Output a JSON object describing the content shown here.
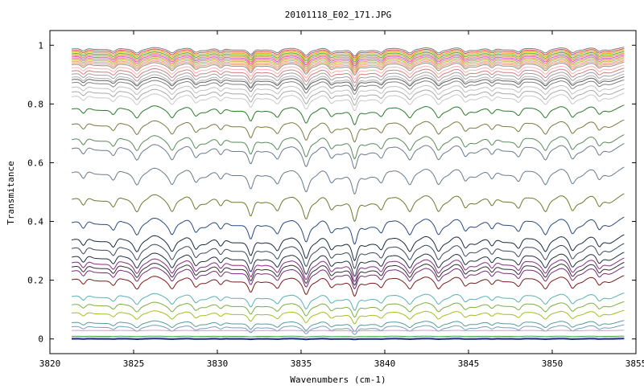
{
  "chart_data": {
    "type": "line",
    "title": "20101118_E02_171.JPG",
    "xlabel": "Wavenumbers (cm-1)",
    "ylabel": "Transmitance",
    "xlim": [
      3820,
      3855
    ],
    "ylim": [
      -0.05,
      1.05
    ],
    "x_ticks": [
      3820,
      3825,
      3830,
      3835,
      3840,
      3845,
      3850,
      3855
    ],
    "y_ticks": [
      0,
      0.2,
      0.4,
      0.6,
      0.8,
      1
    ],
    "x_tick_labels": [
      "3820",
      "3825",
      "3830",
      "3835",
      "3840",
      "3845",
      "3850",
      "3855"
    ],
    "y_tick_labels": [
      "0",
      "0.2",
      "0.4",
      "0.6",
      "0.8",
      "1"
    ],
    "x_range_data": [
      3821.3,
      3854.3
    ],
    "grid": false,
    "legend": "none",
    "absorption_lines_cm1": [
      3822.0,
      3823.8,
      3825.2,
      3827.3,
      3828.7,
      3830.2,
      3832.0,
      3833.6,
      3835.3,
      3836.8,
      3838.2,
      3839.8,
      3841.5,
      3843.2,
      3844.8,
      3846.4,
      3848.0,
      3849.6,
      3851.2,
      3852.8
    ],
    "series": [
      {
        "baseline": 0.995,
        "color": "#7a7a7a"
      },
      {
        "baseline": 0.99,
        "color": "#e04040"
      },
      {
        "baseline": 0.985,
        "color": "#d0a000"
      },
      {
        "baseline": 0.98,
        "color": "#50a020"
      },
      {
        "baseline": 0.975,
        "color": "#e08030"
      },
      {
        "baseline": 0.97,
        "color": "#c050c0"
      },
      {
        "baseline": 0.965,
        "color": "#f07070"
      },
      {
        "baseline": 0.96,
        "color": "#a0c030"
      },
      {
        "baseline": 0.955,
        "color": "#ff9090"
      },
      {
        "baseline": 0.95,
        "color": "#e0a060"
      },
      {
        "baseline": 0.945,
        "color": "#909090"
      },
      {
        "baseline": 0.935,
        "color": "#ffb0b0"
      },
      {
        "baseline": 0.925,
        "color": "#d08080"
      },
      {
        "baseline": 0.915,
        "color": "#a0a0a0"
      },
      {
        "baseline": 0.905,
        "color": "#b0b0b0"
      },
      {
        "baseline": 0.895,
        "color": "#606060"
      },
      {
        "baseline": 0.885,
        "color": "#808080"
      },
      {
        "baseline": 0.87,
        "color": "#c0c0c0"
      },
      {
        "baseline": 0.855,
        "color": "#a8a8a8"
      },
      {
        "baseline": 0.84,
        "color": "#c8c8c8"
      },
      {
        "baseline": 0.8,
        "color": "#2a7a2a"
      },
      {
        "baseline": 0.75,
        "color": "#7a7a40"
      },
      {
        "baseline": 0.7,
        "color": "#5a8a5a"
      },
      {
        "baseline": 0.67,
        "color": "#6a7a8a"
      },
      {
        "baseline": 0.59,
        "color": "#6a7a8a"
      },
      {
        "baseline": 0.5,
        "color": "#6a7a2a"
      },
      {
        "baseline": 0.42,
        "color": "#2a4a7a"
      },
      {
        "baseline": 0.36,
        "color": "#1a2a3a"
      },
      {
        "baseline": 0.33,
        "color": "#3a4a5a"
      },
      {
        "baseline": 0.3,
        "color": "#203040"
      },
      {
        "baseline": 0.28,
        "color": "#8a2a8a"
      },
      {
        "baseline": 0.265,
        "color": "#303030"
      },
      {
        "baseline": 0.25,
        "color": "#7a2a7a"
      },
      {
        "baseline": 0.22,
        "color": "#7a1a1a"
      },
      {
        "baseline": 0.16,
        "color": "#5ab0b0"
      },
      {
        "baseline": 0.13,
        "color": "#7ab040"
      },
      {
        "baseline": 0.1,
        "color": "#a0c020"
      },
      {
        "baseline": 0.065,
        "color": "#5a9a9a"
      },
      {
        "baseline": 0.05,
        "color": "#70a0c0"
      },
      {
        "baseline": 0.03,
        "color": "#d0a0d0"
      },
      {
        "baseline": 0.01,
        "color": "#40a040"
      },
      {
        "baseline": 0.003,
        "color": "#1a1a8a"
      },
      {
        "baseline": 0.0,
        "color": "#0a1a6a"
      }
    ]
  }
}
